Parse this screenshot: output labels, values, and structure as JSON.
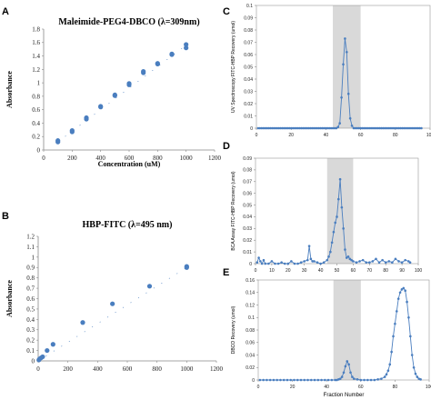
{
  "panels": {
    "A": "A",
    "B": "B",
    "C": "C",
    "D": "D",
    "E": "E"
  },
  "colors": {
    "marker": "#4a7ebf",
    "axis": "#888888",
    "shade": "#d9d9d9",
    "text": "#000000"
  },
  "chart_data": [
    {
      "id": "A",
      "type": "scatter",
      "title": "Maleimide-PEG4-DBCO (λ=309nm)",
      "xlabel": "Concentration (uM)",
      "ylabel": "Absorbance",
      "xlim": [
        0,
        1200
      ],
      "ylim": [
        0,
        1.8
      ],
      "xticks": [
        "0",
        "200",
        "400",
        "600",
        "800",
        "1000",
        "1200"
      ],
      "yticks": [
        "0",
        "0.2",
        "0.4",
        "0.6",
        "0.8",
        "1",
        "1.2",
        "1.4",
        "1.6",
        "1.8"
      ],
      "grid": false,
      "points": [
        [
          100,
          0.12
        ],
        [
          100,
          0.14
        ],
        [
          200,
          0.27
        ],
        [
          200,
          0.29
        ],
        [
          300,
          0.46
        ],
        [
          300,
          0.48
        ],
        [
          400,
          0.64
        ],
        [
          400,
          0.65
        ],
        [
          500,
          0.81
        ],
        [
          500,
          0.82
        ],
        [
          600,
          0.97
        ],
        [
          600,
          0.99
        ],
        [
          700,
          1.15
        ],
        [
          700,
          1.17
        ],
        [
          800,
          1.28
        ],
        [
          800,
          1.29
        ],
        [
          900,
          1.42
        ],
        [
          900,
          1.43
        ],
        [
          1000,
          1.52
        ],
        [
          1000,
          1.57
        ]
      ],
      "trendline": [
        [
          100,
          0.12
        ],
        [
          1000,
          1.56
        ]
      ]
    },
    {
      "id": "B",
      "type": "scatter",
      "title": "HBP-FITC (λ=495 nm)",
      "xlabel": "",
      "ylabel": "Absorbance",
      "xlim": [
        0,
        1200
      ],
      "ylim": [
        0,
        1.2
      ],
      "xticks": [
        "0",
        "200",
        "400",
        "600",
        "800",
        "1000",
        "1200"
      ],
      "yticks": [
        "0",
        "0.1",
        "0.2",
        "0.3",
        "0.4",
        "0.5",
        "0.6",
        "0.7",
        "0.8",
        "0.9",
        "1",
        "1.1",
        "1.2"
      ],
      "grid": false,
      "points": [
        [
          5,
          0.01
        ],
        [
          10,
          0.02
        ],
        [
          20,
          0.03
        ],
        [
          30,
          0.04
        ],
        [
          60,
          0.1
        ],
        [
          100,
          0.16
        ],
        [
          300,
          0.37
        ],
        [
          500,
          0.55
        ],
        [
          750,
          0.72
        ],
        [
          1000,
          0.9
        ],
        [
          1000,
          0.91
        ]
      ],
      "trendline": [
        [
          0,
          0.0
        ],
        [
          1000,
          0.9
        ]
      ]
    },
    {
      "id": "C",
      "type": "line",
      "title": "",
      "xlabel": "",
      "ylabel": "UV Spectroscopy FITC-HBP Recovery (umol)",
      "xlim": [
        0,
        100
      ],
      "ylim": [
        0,
        0.1
      ],
      "xticks": [
        "0",
        "20",
        "40",
        "60",
        "80",
        "100"
      ],
      "yticks": [
        "0",
        "0.01",
        "0.02",
        "0.03",
        "0.04",
        "0.05",
        "0.06",
        "0.07",
        "0.08",
        "0.09",
        "0.1"
      ],
      "shaded_x": [
        44,
        60
      ],
      "series": [
        {
          "x": [
            1,
            2,
            3,
            4,
            5,
            6,
            7,
            8,
            9,
            10,
            11,
            12,
            13,
            14,
            15,
            16,
            17,
            18,
            19,
            20,
            21,
            22,
            23,
            24,
            25,
            26,
            27,
            28,
            29,
            30,
            31,
            32,
            33,
            34,
            35,
            36,
            37,
            38,
            39,
            40,
            41,
            42,
            43,
            44,
            45,
            46,
            47,
            48,
            49,
            50,
            51,
            52,
            53,
            54,
            55,
            56,
            57,
            58,
            59,
            60,
            61,
            62,
            63,
            64,
            65,
            66,
            67,
            68,
            69,
            70,
            71,
            72,
            73,
            74,
            75,
            76,
            77,
            78,
            79,
            80,
            81,
            82,
            83,
            84,
            85,
            86,
            87,
            88,
            89,
            90,
            91,
            92,
            93,
            94,
            95
          ],
          "y": [
            0,
            0,
            0,
            0,
            0,
            0,
            0,
            0,
            0,
            0,
            0,
            0,
            0,
            0,
            0,
            0,
            0,
            0,
            0,
            0,
            0,
            0,
            0,
            0,
            0,
            0,
            0,
            0,
            0,
            0,
            0,
            0,
            0,
            0,
            0,
            0,
            0,
            0,
            0,
            0,
            0,
            0,
            0,
            0,
            0,
            0,
            0.001,
            0.004,
            0.025,
            0.052,
            0.073,
            0.062,
            0.028,
            0.008,
            0.002,
            0,
            0,
            0,
            0,
            0,
            0,
            0,
            0,
            0,
            0,
            0,
            0,
            0,
            0,
            0,
            0,
            0,
            0,
            0,
            0,
            0,
            0,
            0,
            0,
            0,
            0,
            0,
            0,
            0,
            0,
            0,
            0,
            0,
            0,
            0,
            0,
            0,
            0,
            0,
            0
          ]
        }
      ]
    },
    {
      "id": "D",
      "type": "line",
      "title": "",
      "xlabel": "",
      "ylabel": "BCA Assay FITC-HBP Recovery (umol)",
      "xlim": [
        0,
        100
      ],
      "ylim": [
        0,
        0.09
      ],
      "xticks": [
        "0",
        "10",
        "20",
        "30",
        "40",
        "50",
        "60",
        "70",
        "80",
        "90",
        "100"
      ],
      "yticks": [
        "0",
        "0.01",
        "0.02",
        "0.03",
        "0.04",
        "0.05",
        "0.06",
        "0.07",
        "0.08",
        "0.09"
      ],
      "shaded_x": [
        44,
        60
      ],
      "series": [
        {
          "x": [
            1,
            2,
            3,
            4,
            5,
            6,
            8,
            10,
            12,
            14,
            16,
            18,
            20,
            22,
            24,
            26,
            28,
            30,
            32,
            33,
            34,
            35,
            36,
            38,
            40,
            42,
            44,
            45,
            46,
            47,
            48,
            49,
            50,
            51,
            52,
            53,
            54,
            55,
            56,
            57,
            58,
            59,
            60,
            62,
            64,
            66,
            68,
            70,
            72,
            74,
            76,
            78,
            80,
            82,
            84,
            86,
            88,
            90,
            92,
            94,
            95
          ],
          "y": [
            0.001,
            0.005,
            0.002,
            0,
            0.003,
            0,
            0,
            0.002,
            0,
            0,
            0.001,
            0,
            0,
            0.002,
            0,
            0,
            0.001,
            0.002,
            0.003,
            0.015,
            0.004,
            0.002,
            0.002,
            0.001,
            0,
            0.001,
            0.003,
            0.006,
            0.01,
            0.018,
            0.027,
            0.035,
            0.04,
            0.055,
            0.072,
            0.048,
            0.03,
            0.012,
            0.005,
            0.006,
            0.004,
            0.003,
            0.002,
            0.001,
            0.002,
            0.003,
            0.001,
            0.001,
            0.002,
            0.004,
            0.001,
            0.003,
            0.001,
            0.002,
            0.001,
            0.004,
            0.002,
            0.001,
            0.003,
            0.002,
            0.001
          ]
        }
      ]
    },
    {
      "id": "E",
      "type": "line",
      "title": "",
      "xlabel": "Fraction Number",
      "ylabel": "DBCO Recovery (umol)",
      "xlim": [
        0,
        100
      ],
      "ylim": [
        0,
        0.16
      ],
      "xticks": [
        "0",
        "20",
        "40",
        "60",
        "80",
        "100"
      ],
      "yticks": [
        "0",
        "0.02",
        "0.04",
        "0.06",
        "0.08",
        "0.1",
        "0.12",
        "0.14",
        "0.16"
      ],
      "shaded_x": [
        44,
        60
      ],
      "series": [
        {
          "x": [
            1,
            3,
            5,
            7,
            9,
            11,
            13,
            15,
            17,
            19,
            21,
            23,
            25,
            27,
            29,
            31,
            33,
            35,
            37,
            39,
            41,
            43,
            45,
            46,
            47,
            48,
            49,
            50,
            51,
            52,
            53,
            54,
            55,
            56,
            58,
            60,
            62,
            64,
            66,
            68,
            70,
            72,
            74,
            75,
            76,
            77,
            78,
            79,
            80,
            81,
            82,
            83,
            84,
            85,
            86,
            87,
            88,
            89,
            90,
            91,
            92,
            93,
            94,
            95
          ],
          "y": [
            0,
            0,
            0,
            0,
            0,
            0,
            0,
            0,
            0,
            0,
            0,
            0,
            0,
            0,
            0,
            0,
            0,
            0,
            0,
            0,
            0,
            0,
            0,
            0,
            0.001,
            0.002,
            0.005,
            0.012,
            0.022,
            0.03,
            0.025,
            0.012,
            0.005,
            0.002,
            0.001,
            0,
            0,
            0,
            0,
            0,
            0.001,
            0.002,
            0.005,
            0.009,
            0.015,
            0.025,
            0.045,
            0.07,
            0.09,
            0.11,
            0.13,
            0.14,
            0.145,
            0.147,
            0.143,
            0.125,
            0.1,
            0.07,
            0.04,
            0.02,
            0.01,
            0.005,
            0.002,
            0.001
          ]
        }
      ]
    }
  ]
}
